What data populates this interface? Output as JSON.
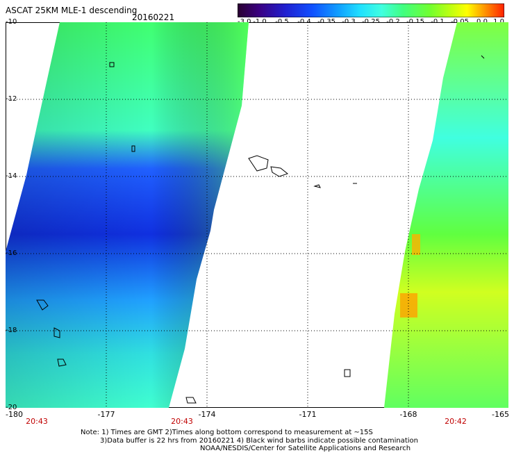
{
  "header": {
    "title": "ASCAT 25KM MLE-1 descending",
    "date": "20160221"
  },
  "colorbar": {
    "ticks": [
      "-3.0",
      "-1.0",
      "-0.5",
      "-0.4",
      "-0.35",
      "-0.3",
      "-0.25",
      "-0.2",
      "-0.15",
      "-0.1",
      "-0.05",
      "0.0",
      "1.0"
    ],
    "colors": [
      "#2a0030",
      "#3a0080",
      "#2020d0",
      "#1050ff",
      "#1090ff",
      "#20d0ff",
      "#40ffe0",
      "#40ff80",
      "#60ff40",
      "#a0ff20",
      "#f0ff00",
      "#ffa000",
      "#ff2000"
    ]
  },
  "axes": {
    "lat_labels": [
      "-10",
      "-12",
      "-14",
      "-16",
      "-18",
      "-20"
    ],
    "lon_labels": [
      "-180",
      "-177",
      "-174",
      "-171",
      "-168",
      "-165"
    ],
    "time_labels": [
      "20:43",
      "20:43",
      "20:42"
    ]
  },
  "notes": {
    "line1": "Note: 1) Times are GMT 2)Times along bottom correspond to measurement at ~15S",
    "line2": "3)Data buffer is 22 hrs from 20160221 4) Black wind barbs indicate possible contamination",
    "line3": "NOAA/NESDIS/Center for Satellite Applications and Research"
  }
}
